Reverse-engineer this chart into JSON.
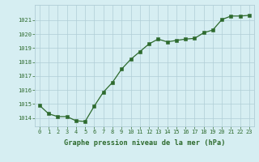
{
  "x": [
    0,
    1,
    2,
    3,
    4,
    5,
    6,
    7,
    8,
    9,
    10,
    11,
    12,
    13,
    14,
    15,
    16,
    17,
    18,
    19,
    20,
    21,
    22,
    23
  ],
  "y": [
    1014.9,
    1014.3,
    1014.1,
    1014.1,
    1013.8,
    1013.75,
    1014.85,
    1015.85,
    1016.55,
    1017.5,
    1018.2,
    1018.75,
    1019.3,
    1019.65,
    1019.45,
    1019.55,
    1019.65,
    1019.7,
    1020.1,
    1020.3,
    1021.05,
    1021.3,
    1021.3,
    1021.35
  ],
  "line_color": "#2d6a2d",
  "marker_color": "#2d6a2d",
  "bg_color": "#d6eef2",
  "grid_color": "#b0cdd6",
  "xlabel": "Graphe pression niveau de la mer (hPa)",
  "xlabel_color": "#2d6a2d",
  "tick_color": "#2d6a2d",
  "ylim_min": 1013.4,
  "ylim_max": 1022.1,
  "yticks": [
    1014,
    1015,
    1016,
    1017,
    1018,
    1019,
    1020,
    1021
  ],
  "xticks": [
    0,
    1,
    2,
    3,
    4,
    5,
    6,
    7,
    8,
    9,
    10,
    11,
    12,
    13,
    14,
    15,
    16,
    17,
    18,
    19,
    20,
    21,
    22,
    23
  ],
  "tick_fontsize": 5.0,
  "xlabel_fontsize": 6.2
}
